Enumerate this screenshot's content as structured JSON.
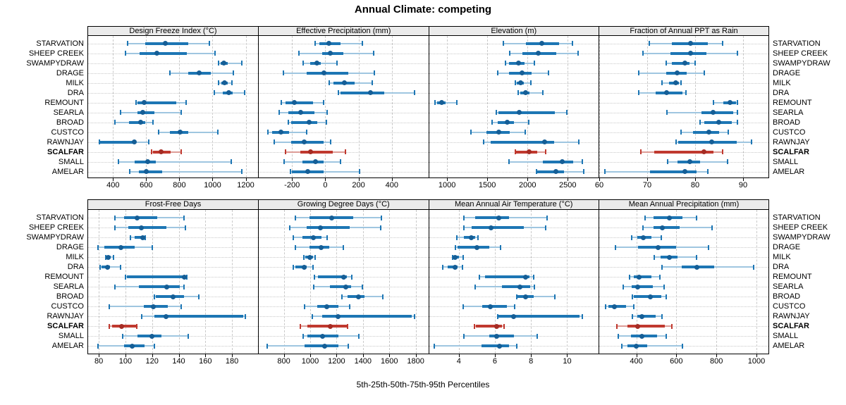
{
  "chart_data": {
    "type": "dotplot-percentiles",
    "title": "Annual Climate: competing",
    "caption": "5th-25th-50th-75th-95th Percentiles",
    "percentiles": [
      5,
      25,
      50,
      75,
      95
    ],
    "sites": [
      "STARVATION",
      "SHEEP CREEK",
      "SWAMPYDRAW",
      "DRAGE",
      "MILK",
      "DRA",
      "REMOUNT",
      "SEARLA",
      "BROAD",
      "CUSTCO",
      "RAWNJAY",
      "SCALFAR",
      "SMALL",
      "AMELAR"
    ],
    "highlighted_site": "SCALFAR",
    "legend_position": "none",
    "grid": "on",
    "colors": {
      "series": "#1d76b4",
      "series_light": "#9fc6e0",
      "series_dot": "#155e96",
      "highlight": "#c0392f",
      "highlight_light": "#dd9d97",
      "highlight_dot": "#a52c24",
      "strip_bg": "#ebebeb",
      "grid": "#c9c9c9"
    },
    "panels": [
      {
        "title": "Design Freeze Index (°C)",
        "row": 0,
        "col": 0,
        "xmin": 250,
        "xmax": 1270,
        "ticks": [
          400,
          600,
          800,
          1000,
          1200
        ],
        "values": [
          [
            490,
            595,
            715,
            855,
            980
          ],
          [
            475,
            560,
            665,
            845,
            1015
          ],
          [
            1035,
            1048,
            1070,
            1092,
            1175
          ],
          [
            745,
            855,
            920,
            990,
            1125
          ],
          [
            1035,
            1052,
            1073,
            1090,
            1115
          ],
          [
            1010,
            1062,
            1098,
            1122,
            1195
          ],
          [
            540,
            549,
            586,
            782,
            842
          ],
          [
            446,
            548,
            579,
            649,
            810
          ],
          [
            410,
            495,
            568,
            596,
            641
          ],
          [
            675,
            744,
            803,
            852,
            1034
          ],
          [
            316,
            323,
            527,
            535,
            614
          ],
          [
            632,
            642,
            688,
            747,
            810
          ],
          [
            432,
            530,
            610,
            659,
            1111
          ],
          [
            502,
            558,
            600,
            698,
            1178
          ]
        ]
      },
      {
        "title": "Effective Precipitation (mm)",
        "row": 0,
        "col": 1,
        "xmin": -400,
        "xmax": 615,
        "ticks": [
          -200,
          0,
          200,
          400
        ],
        "values": [
          [
            -62,
            -36,
            20,
            92,
            221
          ],
          [
            -157,
            -17,
            29,
            109,
            291
          ],
          [
            -132,
            -92,
            -50,
            -27,
            71
          ],
          [
            -251,
            -111,
            -8,
            137,
            295
          ],
          [
            25,
            48,
            113,
            176,
            281
          ],
          [
            81,
            90,
            272,
            356,
            538
          ],
          [
            -265,
            -241,
            -185,
            -73,
            -8
          ],
          [
            -279,
            -223,
            -148,
            -64,
            11
          ],
          [
            -223,
            -204,
            -97,
            -50,
            6
          ],
          [
            -344,
            -321,
            -265,
            -218,
            -111
          ],
          [
            -307,
            -204,
            -125,
            -8,
            34
          ],
          [
            -237,
            -148,
            -90,
            43,
            120
          ],
          [
            -246,
            -139,
            -59,
            -8,
            90
          ],
          [
            -209,
            -202,
            -104,
            -8,
            207
          ]
        ]
      },
      {
        "title": "Elevation (m)",
        "row": 0,
        "col": 2,
        "xmin": 775,
        "xmax": 2875,
        "ticks": [
          1000,
          1500,
          2000,
          2500
        ],
        "values": [
          [
            1702,
            1983,
            2180,
            2389,
            2563
          ],
          [
            1780,
            1940,
            2137,
            2360,
            2630
          ],
          [
            1722,
            1766,
            1887,
            1963,
            2090
          ],
          [
            1626,
            1771,
            1934,
            2050,
            2264
          ],
          [
            1847,
            1867,
            1911,
            1954,
            2041
          ],
          [
            1887,
            1911,
            1974,
            2021,
            2195
          ],
          [
            852,
            872,
            930,
            977,
            1122
          ],
          [
            1615,
            1635,
            1896,
            2340,
            2485
          ],
          [
            1557,
            1626,
            1751,
            1829,
            2012
          ],
          [
            1296,
            1490,
            1644,
            1780,
            1974
          ],
          [
            1452,
            1539,
            2215,
            2331,
            2641
          ],
          [
            1847,
            1858,
            2021,
            2119,
            2230
          ],
          [
            1771,
            2195,
            2432,
            2572,
            2679
          ],
          [
            2108,
            2119,
            2351,
            2456,
            2699
          ]
        ]
      },
      {
        "title": "Fraction of Annual PPT as Rain",
        "row": 0,
        "col": 3,
        "xmin": 60,
        "xmax": 95.3,
        "ticks": [
          60,
          70,
          80,
          90
        ],
        "values": [
          [
            70.4,
            75.1,
            79.0,
            82.6,
            85.8
          ],
          [
            69.1,
            74.9,
            79.0,
            82.3,
            88.9
          ],
          [
            73.9,
            75.2,
            77.9,
            78.9,
            80.0
          ],
          [
            68.2,
            73.9,
            76.2,
            78.3,
            81.9
          ],
          [
            73.1,
            74.6,
            76.0,
            76.6,
            77.1
          ],
          [
            68.2,
            71.7,
            74.1,
            77.3,
            78.1
          ],
          [
            83.8,
            85.9,
            87.3,
            88.5,
            88.8
          ],
          [
            74.1,
            81.4,
            83.8,
            87.9,
            88.8
          ],
          [
            81.0,
            81.9,
            84.9,
            87.6,
            88.9
          ],
          [
            77.1,
            79.5,
            82.9,
            85.0,
            86.9
          ],
          [
            76.0,
            76.5,
            83.5,
            88.7,
            91.7
          ],
          [
            68.7,
            71.5,
            81.8,
            83.8,
            85.8
          ],
          [
            74.2,
            76.3,
            78.9,
            81.0,
            86.7
          ],
          [
            61.2,
            70.6,
            77.9,
            80.3,
            82.7
          ]
        ]
      },
      {
        "title": "Frost-Free Days",
        "row": 1,
        "col": 0,
        "xmin": 72,
        "xmax": 199,
        "ticks": [
          80,
          100,
          120,
          140,
          160,
          180
        ],
        "values": [
          [
            92,
            99,
            109,
            124,
            144
          ],
          [
            92,
            102,
            112,
            131,
            145
          ],
          [
            104,
            107,
            113,
            114,
            115
          ],
          [
            79.5,
            84,
            96.5,
            107,
            120
          ],
          [
            85,
            85.5,
            87,
            89,
            91
          ],
          [
            81,
            82,
            86.5,
            88.5,
            96.5
          ],
          [
            100,
            101,
            144,
            145,
            146
          ],
          [
            92,
            110,
            131,
            141,
            144
          ],
          [
            122,
            123,
            136,
            144,
            155
          ],
          [
            88,
            114,
            121,
            132,
            142
          ],
          [
            112,
            121.5,
            130.5,
            188.5,
            190
          ],
          [
            88,
            90,
            97,
            108,
            108.5
          ],
          [
            98,
            109,
            120,
            127,
            147
          ],
          [
            79.5,
            99,
            105,
            114.5,
            122
          ]
        ]
      },
      {
        "title": "Growing Degree Days (°C)",
        "row": 1,
        "col": 1,
        "xmin": 610,
        "xmax": 1890,
        "ticks": [
          800,
          1000,
          1200,
          1400,
          1600,
          1800
        ],
        "values": [
          [
            890,
            995,
            1165,
            1325,
            1540
          ],
          [
            845,
            975,
            1075,
            1300,
            1535
          ],
          [
            870,
            940,
            1025,
            1085,
            1130
          ],
          [
            890,
            995,
            1085,
            1145,
            1250
          ],
          [
            950,
            965,
            995,
            1020,
            1040
          ],
          [
            873,
            890,
            955,
            973,
            1020
          ],
          [
            1030,
            1060,
            1255,
            1280,
            1315
          ],
          [
            1025,
            1150,
            1270,
            1310,
            1395
          ],
          [
            1240,
            1285,
            1365,
            1410,
            1550
          ],
          [
            955,
            1055,
            1125,
            1215,
            1300
          ],
          [
            1015,
            1090,
            1210,
            1770,
            1790
          ],
          [
            925,
            980,
            1150,
            1280,
            1285
          ],
          [
            945,
            980,
            1095,
            1215,
            1370
          ],
          [
            675,
            955,
            1110,
            1215,
            1290
          ]
        ]
      },
      {
        "title": "Mean Annual Air Temperature (°C)",
        "row": 1,
        "col": 2,
        "xmin": 2.35,
        "xmax": 11.7,
        "ticks": [
          4,
          6,
          8,
          10
        ],
        "values": [
          [
            4.3,
            4.9,
            6.2,
            6.8,
            8.9
          ],
          [
            4.3,
            4.7,
            5.8,
            7.6,
            8.8
          ],
          [
            3.9,
            4.3,
            4.7,
            4.9,
            5.05
          ],
          [
            3.8,
            3.95,
            5.0,
            5.7,
            6.3
          ],
          [
            3.65,
            3.7,
            3.8,
            4.0,
            4.25
          ],
          [
            3.1,
            3.4,
            3.8,
            3.95,
            4.2
          ],
          [
            5.15,
            5.45,
            7.7,
            7.9,
            8.15
          ],
          [
            4.9,
            6.4,
            7.4,
            7.95,
            8.2
          ],
          [
            7.2,
            7.25,
            7.7,
            8.15,
            9.3
          ],
          [
            4.25,
            5.3,
            5.75,
            6.65,
            7.1
          ],
          [
            6.15,
            6.2,
            7.05,
            10.7,
            10.85
          ],
          [
            4.85,
            4.95,
            6.1,
            6.4,
            6.5
          ],
          [
            4.3,
            5.7,
            6.1,
            7.05,
            8.35
          ],
          [
            2.65,
            5.25,
            6.25,
            6.8,
            7.2
          ]
        ]
      },
      {
        "title": "Mean Annual Precipitation (mm)",
        "row": 1,
        "col": 3,
        "xmin": 215,
        "xmax": 1060,
        "ticks": [
          400,
          600,
          800,
          1000
        ],
        "values": [
          [
            443,
            485,
            567,
            630,
            700
          ],
          [
            435,
            485,
            530,
            615,
            778
          ],
          [
            377,
            404,
            435,
            474,
            525
          ],
          [
            295,
            408,
            509,
            599,
            759
          ],
          [
            490,
            520,
            564,
            607,
            700
          ],
          [
            529,
            626,
            704,
            790,
            985
          ],
          [
            368,
            388,
            415,
            474,
            517
          ],
          [
            333,
            377,
            408,
            482,
            540
          ],
          [
            380,
            388,
            470,
            525,
            549
          ],
          [
            245,
            260,
            291,
            350,
            388
          ],
          [
            380,
            404,
            427,
            497,
            529
          ],
          [
            303,
            357,
            408,
            544,
            579
          ],
          [
            310,
            373,
            427,
            502,
            549
          ],
          [
            326,
            357,
            400,
            455,
            630
          ]
        ]
      }
    ]
  }
}
